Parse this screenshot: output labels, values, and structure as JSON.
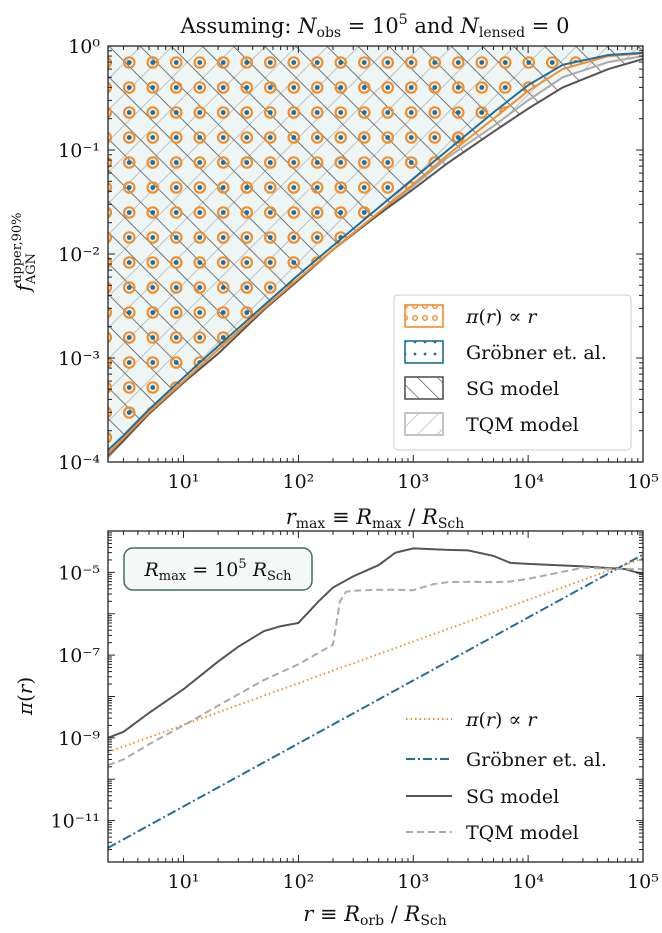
{
  "chart_data": [
    {
      "type": "area",
      "title": "Assuming: N_obs = 10^5 and N_lensed = 0",
      "xlabel": "r_max ≡ R_max / R_Sch",
      "ylabel": "f_AGN^{upper,90%}",
      "xscale": "log",
      "yscale": "log",
      "xlim": [
        2.2,
        100000
      ],
      "ylim": [
        0.0001,
        1
      ],
      "x_ticks": [
        10,
        100,
        1000,
        10000,
        100000
      ],
      "y_ticks": [
        0.0001,
        0.001,
        0.01,
        0.1,
        1
      ],
      "shading": "region above each curve is excluded",
      "legend_position": "lower-right",
      "series": [
        {
          "name": "π(r) ∝ r",
          "color": "#f28e2b",
          "x": [
            2.2,
            3,
            5,
            10,
            20,
            50,
            100,
            200,
            500,
            1000,
            2000,
            5000,
            10000,
            20000,
            50000,
            100000
          ],
          "y": [
            0.00012,
            0.00017,
            0.0003,
            0.0006,
            0.0012,
            0.003,
            0.0058,
            0.011,
            0.025,
            0.047,
            0.09,
            0.2,
            0.37,
            0.6,
            0.8,
            0.85
          ]
        },
        {
          "name": "Gröbner et. al.",
          "color": "#1f6e9c",
          "x": [
            2.2,
            3,
            5,
            10,
            20,
            50,
            100,
            200,
            500,
            1000,
            2000,
            5000,
            10000,
            20000,
            50000,
            100000
          ],
          "y": [
            0.00013,
            0.00018,
            0.00032,
            0.00065,
            0.0013,
            0.0032,
            0.0063,
            0.012,
            0.028,
            0.053,
            0.1,
            0.23,
            0.42,
            0.66,
            0.82,
            0.86
          ]
        },
        {
          "name": "SG model",
          "color": "#555555",
          "x": [
            2.2,
            3,
            5,
            10,
            20,
            50,
            100,
            200,
            500,
            1000,
            2000,
            5000,
            10000,
            20000,
            50000,
            100000
          ],
          "y": [
            0.000115,
            0.00016,
            0.00029,
            0.00058,
            0.0011,
            0.0029,
            0.0056,
            0.011,
            0.024,
            0.042,
            0.075,
            0.15,
            0.25,
            0.4,
            0.6,
            0.75
          ]
        },
        {
          "name": "TQM model",
          "color": "#aaaaaa",
          "x": [
            2.2,
            3,
            5,
            10,
            20,
            50,
            100,
            200,
            300,
            500,
            1000,
            2000,
            5000,
            10000,
            20000,
            50000,
            100000
          ],
          "y": [
            0.00011,
            0.00016,
            0.0003,
            0.0006,
            0.0012,
            0.003,
            0.0058,
            0.011,
            0.016,
            0.025,
            0.045,
            0.085,
            0.17,
            0.3,
            0.5,
            0.7,
            0.8
          ]
        }
      ]
    },
    {
      "type": "line",
      "annotation": "R_max = 10^5 R_Sch",
      "xlabel": "r ≡ R_orb / R_Sch",
      "ylabel": "π(r)",
      "xscale": "log",
      "yscale": "log",
      "xlim": [
        2.2,
        100000
      ],
      "ylim": [
        1e-12,
        0.0001
      ],
      "x_ticks": [
        10,
        100,
        1000,
        10000,
        100000
      ],
      "y_ticks": [
        1e-11,
        1e-09,
        1e-07,
        1e-05
      ],
      "legend_position": "lower-right",
      "series": [
        {
          "name": "π(r) ∝ r",
          "color": "#f28e2b",
          "style": "dotted",
          "x": [
            2.2,
            100000
          ],
          "y": [
            4.5e-10,
            2.2e-05
          ]
        },
        {
          "name": "Gröbner et. al.",
          "color": "#1f6e9c",
          "style": "dashdot",
          "x": [
            2.2,
            100000
          ],
          "y": [
            2.2e-12,
            2.7e-05
          ]
        },
        {
          "name": "SG model",
          "color": "#555555",
          "style": "solid",
          "x": [
            2.2,
            3,
            5,
            10,
            20,
            30,
            50,
            70,
            100,
            150,
            200,
            300,
            500,
            700,
            1000,
            2000,
            3000,
            5000,
            7000,
            10000,
            30000,
            70000,
            100000
          ],
          "y": [
            1e-09,
            1.4e-09,
            4e-09,
            1.5e-08,
            7e-08,
            1.6e-07,
            3.8e-07,
            5e-07,
            6e-07,
            2e-06,
            4.3e-06,
            8e-06,
            1.5e-05,
            3e-05,
            3.8e-05,
            3.5e-05,
            3.4e-05,
            2.5e-05,
            1.7e-05,
            1.6e-05,
            1.4e-05,
            1.2e-05,
            9e-06
          ]
        },
        {
          "name": "TQM model",
          "color": "#aaaaaa",
          "style": "dashed",
          "x": [
            2.2,
            3,
            5,
            10,
            20,
            50,
            100,
            200,
            230,
            260,
            300,
            500,
            700,
            1000,
            1500,
            2000,
            3000,
            5000,
            7000,
            10000,
            30000,
            60000,
            100000
          ],
          "y": [
            2.2e-10,
            3e-10,
            7e-10,
            2e-09,
            6e-09,
            2.5e-08,
            6e-08,
            1.8e-07,
            2e-06,
            3.4e-06,
            3.6e-06,
            3.8e-06,
            3.8e-06,
            3.7e-06,
            5.2e-06,
            5.8e-06,
            5.9e-06,
            5.8e-06,
            6e-06,
            7e-06,
            1.3e-05,
            1.2e-05,
            1.2e-05
          ]
        }
      ]
    }
  ]
}
